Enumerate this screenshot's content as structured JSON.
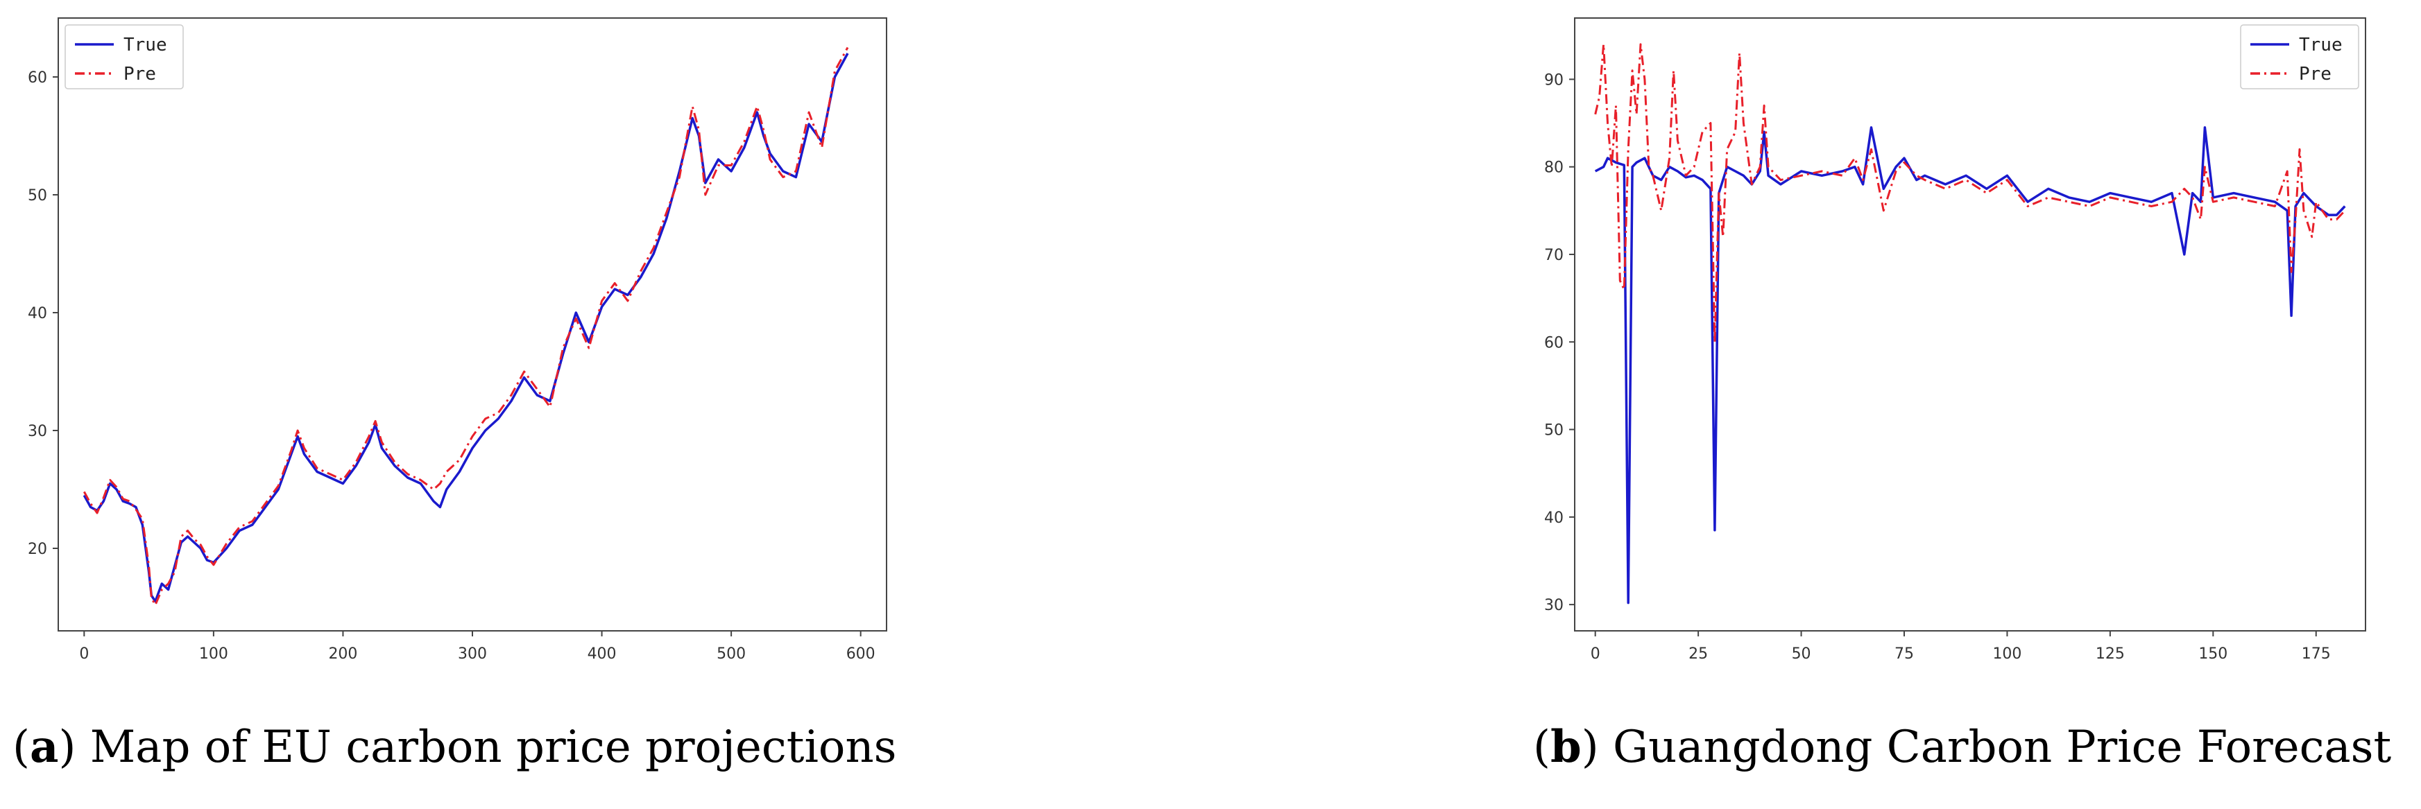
{
  "colors": {
    "true_line": "#1a1acc",
    "pre_line": "#e8202a",
    "axes": "#444444"
  },
  "charts": [
    {
      "caption_letter": "a",
      "caption_text": "Map of EU carbon price projections"
    },
    {
      "caption_letter": "b",
      "caption_text": "Guangdong Carbon Price Forecast"
    }
  ],
  "chart_data": [
    {
      "type": "line",
      "title": "",
      "xlabel": "",
      "ylabel": "",
      "xlim": [
        -20,
        620
      ],
      "ylim": [
        13,
        65
      ],
      "xticks": [
        0,
        100,
        200,
        300,
        400,
        500,
        600
      ],
      "yticks": [
        20,
        30,
        40,
        50,
        60
      ],
      "grid": false,
      "legend": "top-left",
      "series": [
        {
          "name": "True",
          "style": "solid",
          "x": [
            0,
            5,
            10,
            15,
            20,
            25,
            30,
            35,
            40,
            45,
            50,
            52,
            55,
            60,
            65,
            70,
            75,
            80,
            85,
            90,
            95,
            100,
            110,
            120,
            130,
            140,
            150,
            160,
            165,
            170,
            180,
            190,
            200,
            210,
            220,
            225,
            230,
            240,
            250,
            260,
            270,
            275,
            280,
            290,
            300,
            310,
            320,
            330,
            340,
            350,
            360,
            370,
            380,
            390,
            400,
            410,
            420,
            430,
            440,
            450,
            460,
            470,
            475,
            480,
            490,
            500,
            510,
            520,
            525,
            530,
            540,
            550,
            560,
            570,
            580,
            590
          ],
          "values": [
            24.5,
            23.5,
            23.2,
            24.0,
            25.5,
            25.0,
            24.0,
            23.8,
            23.5,
            22.0,
            18.0,
            16.0,
            15.5,
            17.0,
            16.5,
            18.5,
            20.5,
            21.0,
            20.5,
            20.0,
            19.0,
            18.8,
            20.0,
            21.5,
            22.0,
            23.5,
            25.0,
            28.0,
            29.5,
            28.0,
            26.5,
            26.0,
            25.5,
            27.0,
            29.0,
            30.5,
            28.5,
            27.0,
            26.0,
            25.5,
            24.0,
            23.5,
            25.0,
            26.5,
            28.5,
            30.0,
            31.0,
            32.5,
            34.5,
            33.0,
            32.5,
            36.5,
            40.0,
            37.5,
            40.5,
            42.0,
            41.5,
            43.0,
            45.0,
            48.0,
            52.0,
            56.5,
            55.0,
            51.0,
            53.0,
            52.0,
            54.0,
            57.0,
            55.0,
            53.5,
            52.0,
            51.5,
            56.0,
            54.5,
            60.0,
            62.0
          ]
        },
        {
          "name": "Pre",
          "style": "dashdot",
          "x": [
            0,
            5,
            10,
            15,
            20,
            25,
            30,
            35,
            40,
            45,
            50,
            52,
            55,
            60,
            65,
            70,
            75,
            80,
            85,
            90,
            95,
            100,
            110,
            120,
            130,
            140,
            150,
            160,
            165,
            170,
            180,
            190,
            200,
            210,
            220,
            225,
            230,
            240,
            250,
            260,
            270,
            275,
            280,
            290,
            300,
            310,
            320,
            330,
            340,
            350,
            360,
            370,
            380,
            390,
            400,
            410,
            420,
            430,
            440,
            450,
            460,
            470,
            475,
            480,
            490,
            500,
            510,
            520,
            525,
            530,
            540,
            550,
            560,
            570,
            580,
            590
          ],
          "values": [
            24.8,
            23.8,
            23.0,
            24.3,
            25.8,
            25.2,
            24.2,
            24.0,
            23.3,
            22.5,
            18.5,
            15.8,
            15.2,
            16.5,
            17.0,
            18.0,
            21.0,
            21.5,
            20.8,
            20.3,
            19.3,
            18.6,
            20.4,
            21.8,
            22.3,
            23.8,
            25.3,
            28.3,
            30.0,
            28.5,
            26.8,
            26.3,
            25.8,
            27.3,
            29.5,
            30.8,
            29.0,
            27.3,
            26.3,
            25.8,
            25.0,
            25.5,
            26.5,
            27.5,
            29.5,
            31.0,
            31.5,
            33.0,
            35.0,
            33.5,
            32.0,
            37.0,
            39.5,
            37.0,
            41.0,
            42.5,
            41.0,
            43.5,
            45.5,
            48.5,
            51.5,
            57.5,
            55.5,
            50.0,
            52.5,
            52.5,
            54.5,
            57.5,
            55.5,
            53.0,
            51.5,
            52.0,
            57.0,
            54.0,
            60.5,
            62.5
          ]
        }
      ]
    },
    {
      "type": "line",
      "title": "",
      "xlabel": "",
      "ylabel": "",
      "xlim": [
        -5,
        187
      ],
      "ylim": [
        27,
        97
      ],
      "xticks": [
        0,
        25,
        50,
        75,
        100,
        125,
        150,
        175
      ],
      "yticks": [
        30,
        40,
        50,
        60,
        70,
        80,
        90
      ],
      "grid": false,
      "legend": "top-right",
      "series": [
        {
          "name": "True",
          "style": "solid",
          "x": [
            0,
            2,
            3,
            5,
            7,
            8,
            9,
            10,
            12,
            14,
            16,
            18,
            20,
            22,
            24,
            26,
            28,
            29,
            30,
            32,
            34,
            36,
            38,
            40,
            41,
            42,
            45,
            50,
            55,
            60,
            63,
            65,
            67,
            70,
            73,
            75,
            78,
            80,
            85,
            90,
            95,
            100,
            105,
            110,
            115,
            120,
            125,
            130,
            135,
            140,
            143,
            145,
            147,
            148,
            150,
            155,
            160,
            165,
            168,
            169,
            170,
            172,
            175,
            178,
            180,
            182
          ],
          "values": [
            79.5,
            80.0,
            81.0,
            80.5,
            80.2,
            30.2,
            80.0,
            80.5,
            81.0,
            79.0,
            78.5,
            80.0,
            79.5,
            78.8,
            79.0,
            78.5,
            77.5,
            38.5,
            77.0,
            80.0,
            79.5,
            79.0,
            78.0,
            79.5,
            84.0,
            79.0,
            78.0,
            79.5,
            79.0,
            79.5,
            80.0,
            78.0,
            84.5,
            77.5,
            80.0,
            81.0,
            78.5,
            79.0,
            78.0,
            79.0,
            77.5,
            79.0,
            76.0,
            77.5,
            76.5,
            76.0,
            77.0,
            76.5,
            76.0,
            77.0,
            70.0,
            77.0,
            76.0,
            84.5,
            76.5,
            77.0,
            76.5,
            76.0,
            75.0,
            63.0,
            75.5,
            77.0,
            75.5,
            74.5,
            74.5,
            75.5
          ]
        },
        {
          "name": "Pre",
          "style": "dashdot",
          "x": [
            0,
            1,
            2,
            3,
            4,
            5,
            6,
            7,
            8,
            9,
            10,
            11,
            12,
            13,
            14,
            16,
            18,
            19,
            20,
            22,
            24,
            26,
            28,
            29,
            30,
            31,
            32,
            34,
            35,
            36,
            38,
            40,
            41,
            42,
            45,
            50,
            55,
            60,
            63,
            65,
            67,
            70,
            73,
            75,
            78,
            80,
            85,
            90,
            95,
            100,
            105,
            110,
            115,
            120,
            125,
            130,
            135,
            140,
            143,
            145,
            147,
            148,
            150,
            155,
            160,
            165,
            168,
            169,
            170,
            171,
            172,
            174,
            175,
            178,
            180,
            182
          ],
          "values": [
            86.0,
            88.0,
            94.0,
            85.0,
            80.0,
            87.0,
            67.0,
            66.0,
            82.0,
            91.0,
            86.0,
            94.0,
            90.0,
            80.0,
            79.0,
            75.0,
            81.0,
            91.0,
            83.0,
            79.0,
            80.0,
            84.0,
            85.0,
            60.0,
            77.0,
            72.0,
            82.0,
            84.0,
            93.0,
            85.0,
            78.0,
            80.0,
            87.0,
            80.0,
            78.5,
            79.0,
            79.5,
            79.0,
            81.0,
            78.5,
            82.0,
            75.0,
            79.5,
            80.5,
            79.0,
            78.5,
            77.5,
            78.5,
            77.0,
            78.5,
            75.5,
            76.5,
            76.0,
            75.5,
            76.5,
            76.0,
            75.5,
            76.0,
            77.5,
            76.5,
            74.0,
            80.0,
            76.0,
            76.5,
            76.0,
            75.5,
            79.5,
            68.0,
            74.0,
            82.0,
            75.0,
            72.0,
            76.0,
            74.0,
            74.0,
            75.0
          ]
        }
      ]
    }
  ]
}
